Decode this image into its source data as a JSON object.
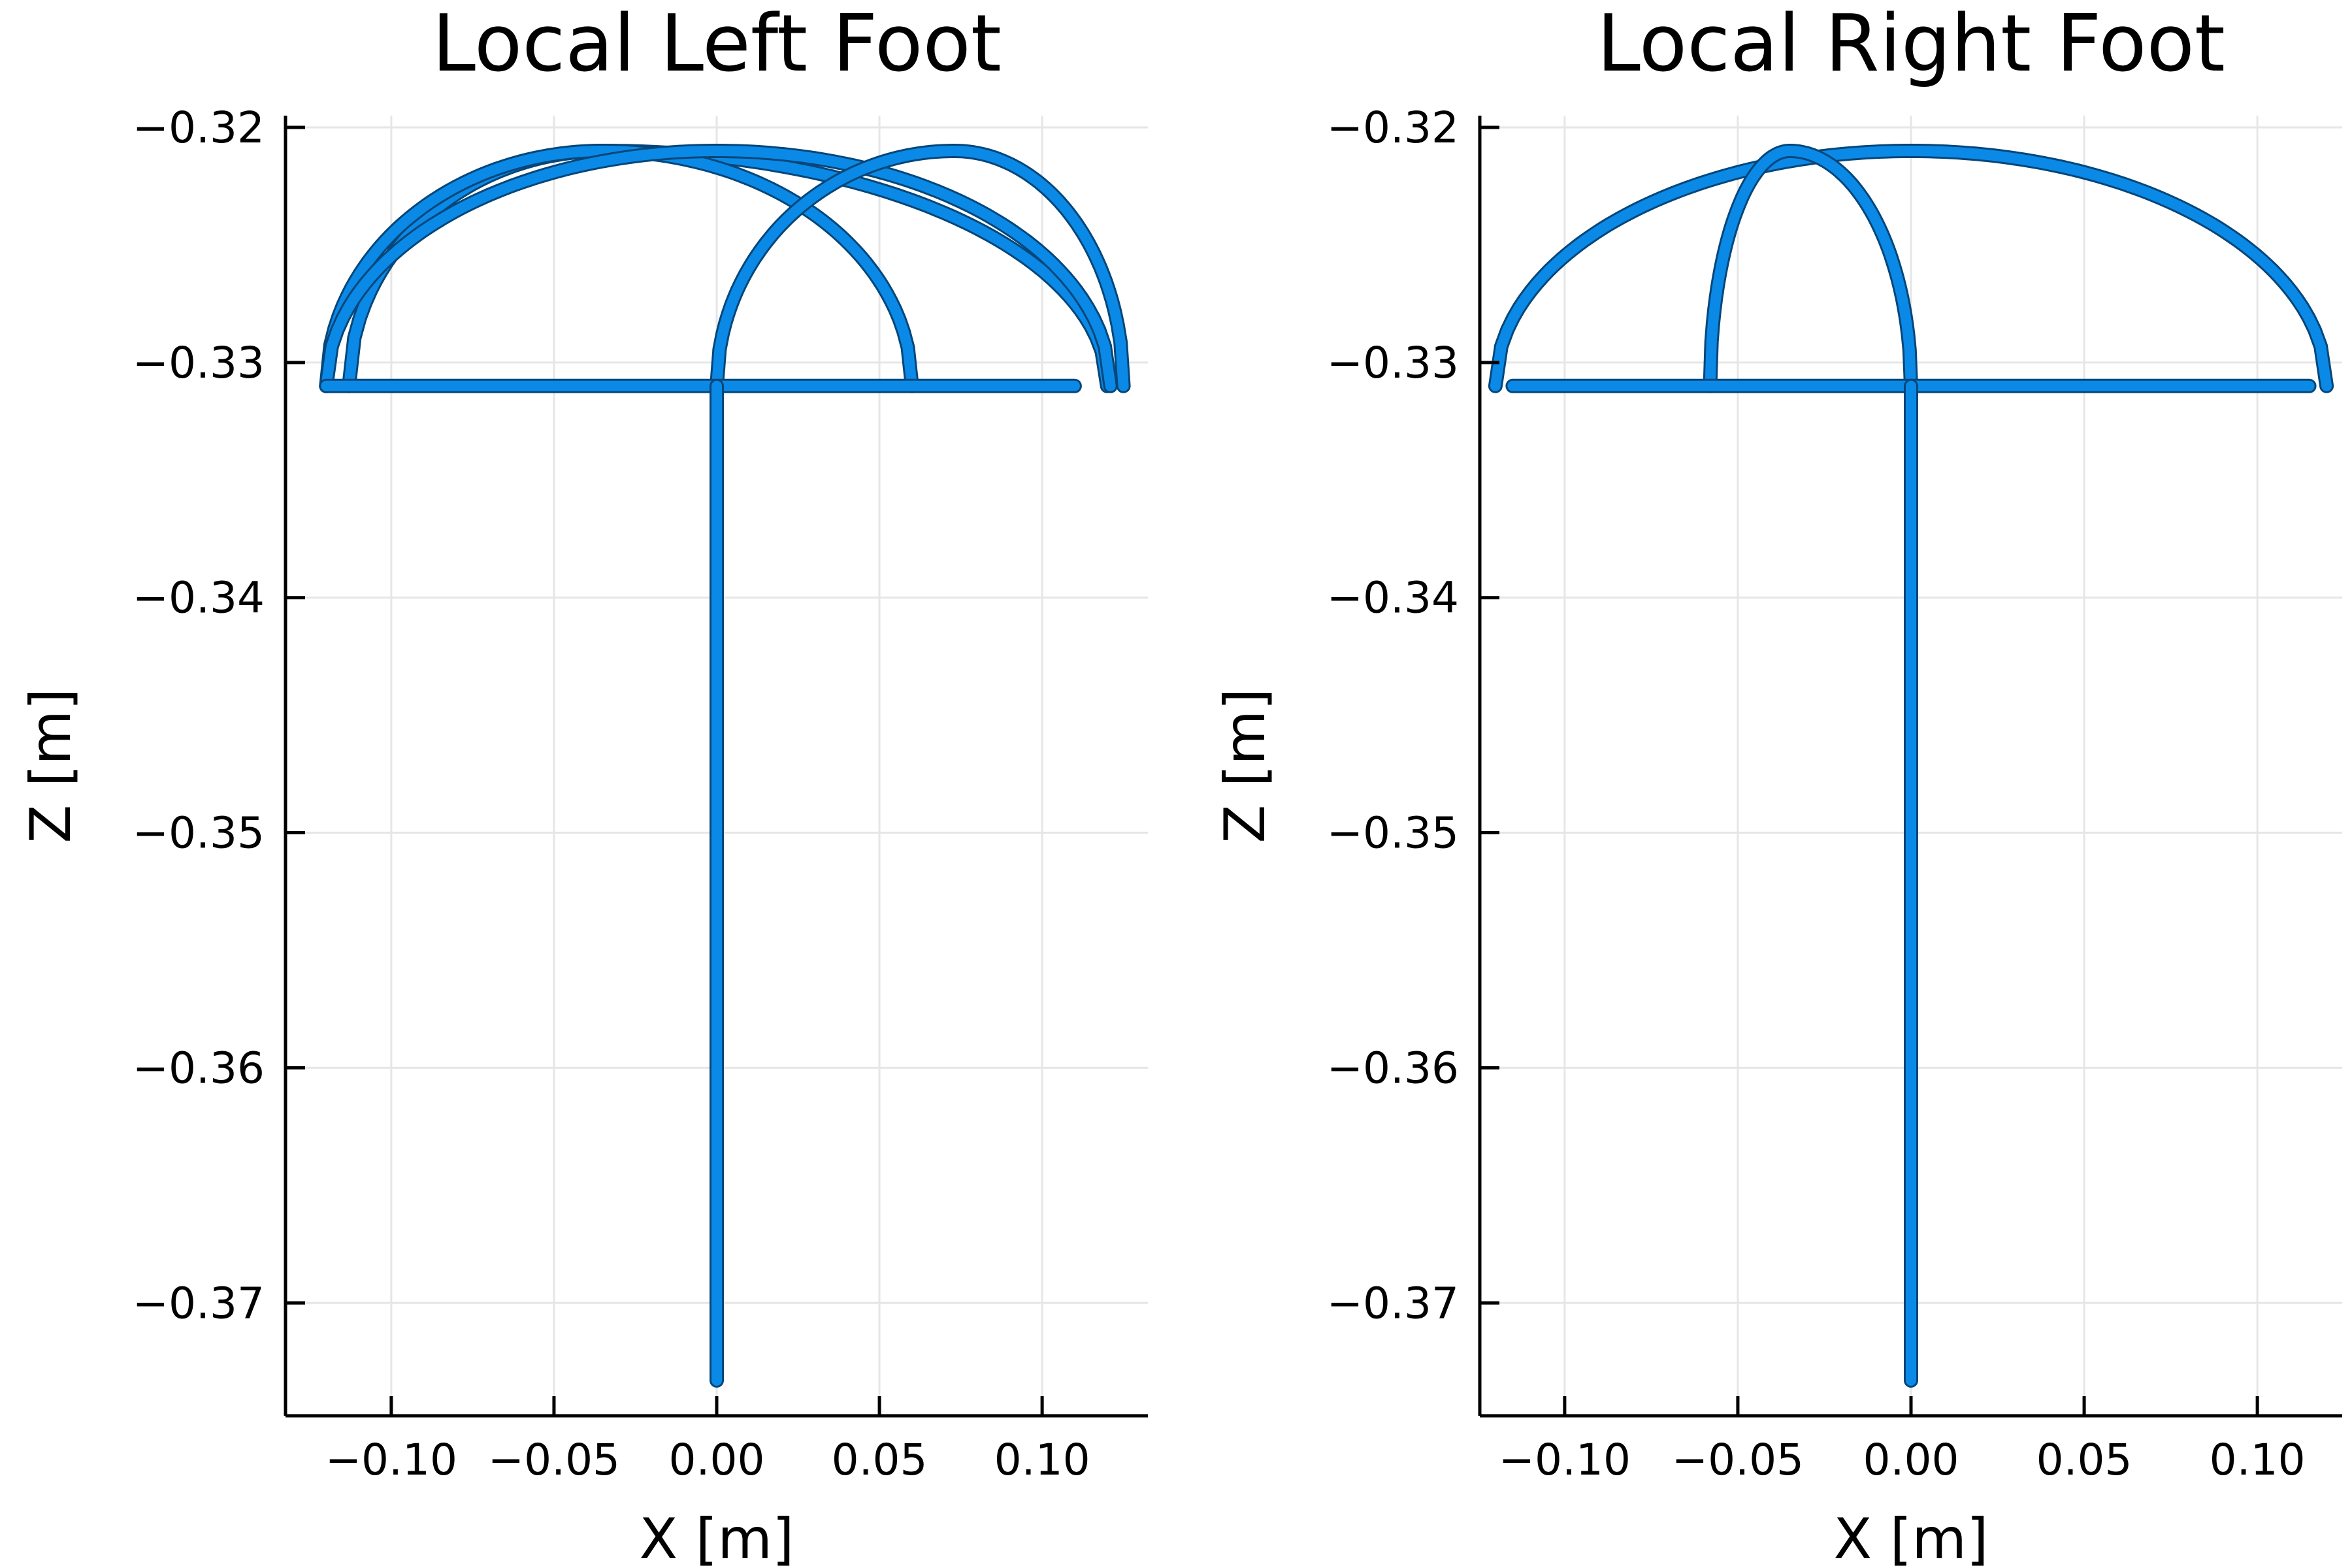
{
  "page": {
    "background": "#ffffff"
  },
  "style": {
    "series_color": "#0a8ae6",
    "series_outline": "#06467a",
    "grid_color": "#e6e6e6"
  },
  "chart_data": [
    {
      "type": "scatter",
      "title": "Local Left Foot",
      "xlabel": "X [m]",
      "ylabel": "Z [m]",
      "xlim": [
        -0.1325,
        0.1325
      ],
      "ylim": [
        -0.3748,
        -0.3195
      ],
      "xticks": [
        -0.1,
        -0.05,
        0.0,
        0.05,
        0.1
      ],
      "xtick_labels": [
        "−0.10",
        "−0.05",
        "0.00",
        "0.05",
        "0.10"
      ],
      "yticks": [
        -0.32,
        -0.33,
        -0.34,
        -0.35,
        -0.36,
        -0.37
      ],
      "ytick_labels": [
        "−0.32",
        "−0.33",
        "−0.34",
        "−0.35",
        "−0.36",
        "−0.37"
      ],
      "grid": true,
      "legend": "none",
      "series": [
        {
          "kind": "arc",
          "x_start": -0.113,
          "x_end": 0.12,
          "x_peak": -0.035,
          "z_base": -0.331,
          "z_peak": -0.321
        },
        {
          "kind": "arc",
          "x_start": -0.12,
          "x_end": 0.06,
          "x_peak": -0.035,
          "z_base": -0.331,
          "z_peak": -0.321
        },
        {
          "kind": "arc",
          "x_start": -0.12,
          "x_end": 0.121,
          "x_peak": 0.0,
          "z_base": -0.331,
          "z_peak": -0.321
        },
        {
          "kind": "arc",
          "x_start": 0.0,
          "x_end": 0.125,
          "x_peak": 0.073,
          "z_base": -0.331,
          "z_peak": -0.321
        },
        {
          "kind": "line",
          "points": [
            [
              -0.12,
              -0.331
            ],
            [
              0.11,
              -0.331
            ]
          ]
        },
        {
          "kind": "line",
          "points": [
            [
              0.0,
              -0.331
            ],
            [
              0.0,
              -0.3733
            ]
          ]
        }
      ]
    },
    {
      "type": "scatter",
      "title": "Local Right Foot",
      "xlabel": "X [m]",
      "ylabel": "Z [m]",
      "xlim": [
        -0.1245,
        0.1245
      ],
      "ylim": [
        -0.3748,
        -0.3195
      ],
      "xticks": [
        -0.1,
        -0.05,
        0.0,
        0.05,
        0.1
      ],
      "xtick_labels": [
        "−0.10",
        "−0.05",
        "0.00",
        "0.05",
        "0.10"
      ],
      "yticks": [
        -0.32,
        -0.33,
        -0.34,
        -0.35,
        -0.36,
        -0.37
      ],
      "ytick_labels": [
        "−0.32",
        "−0.33",
        "−0.34",
        "−0.35",
        "−0.36",
        "−0.37"
      ],
      "grid": true,
      "legend": "none",
      "series": [
        {
          "kind": "arc",
          "x_start": -0.12,
          "x_end": 0.12,
          "x_peak": 0.0,
          "z_base": -0.331,
          "z_peak": -0.321
        },
        {
          "kind": "arc",
          "x_start": -0.058,
          "x_end": 0.0,
          "x_peak": -0.035,
          "z_base": -0.331,
          "z_peak": -0.321
        },
        {
          "kind": "line",
          "points": [
            [
              -0.115,
              -0.331
            ],
            [
              0.115,
              -0.331
            ]
          ]
        },
        {
          "kind": "line",
          "points": [
            [
              0.0,
              -0.331
            ],
            [
              0.0,
              -0.3733
            ]
          ]
        }
      ]
    }
  ]
}
